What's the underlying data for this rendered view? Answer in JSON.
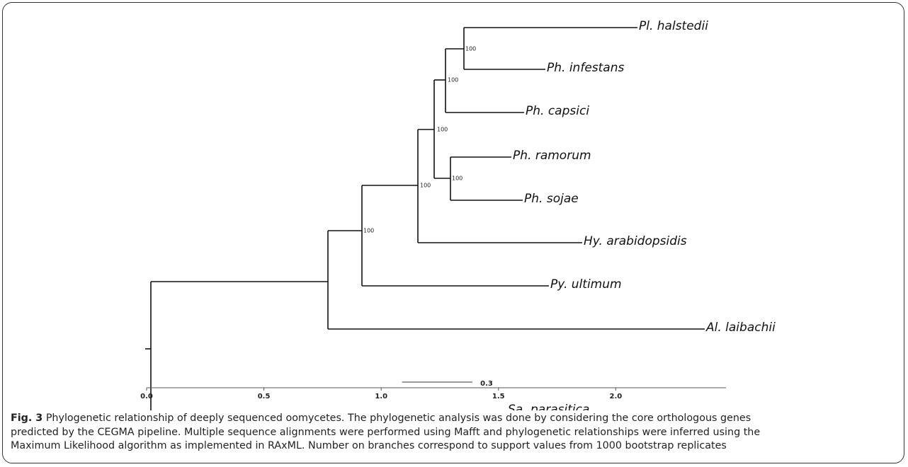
{
  "figure": {
    "taxa": [
      "Pl. halstedii",
      "Ph. infestans",
      "Ph. capsici",
      "Ph. ramorum",
      "Ph. sojae",
      "Hy. arabidopsidis",
      "Py. ultimum",
      "Al. laibachii",
      "Sa. parasitica"
    ],
    "support": [
      100,
      100,
      100,
      100,
      100,
      100
    ],
    "scale_bar": 0.3,
    "xlim": [
      0,
      2.47
    ],
    "xticks": [
      {
        "value": 0,
        "label": "0.0"
      },
      {
        "value": 0.5,
        "label": "0.5"
      },
      {
        "value": 1,
        "label": "1.0"
      },
      {
        "value": 1.5,
        "label": "1.5"
      },
      {
        "value": 2,
        "label": "2.0"
      }
    ]
  },
  "caption": {
    "label": "Fig. 3",
    "lines": [
      "Phylogenetic relationship of deeply sequenced oomycetes. The phylogenetic analysis was done by considering the core orthologous genes",
      "predicted by the CEGMA pipeline. Multiple sequence alignments were performed using Mafft and phylogenetic relationships were inferred using the",
      "Maximum Likelihood algorithm as implemented in RAxML. Number on branches correspond to support values from 1000 bootstrap replicates"
    ]
  }
}
